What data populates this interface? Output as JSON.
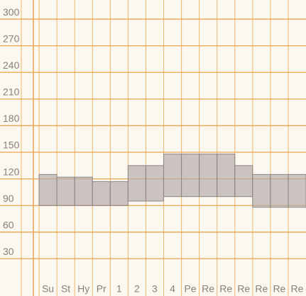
{
  "chart_data": {
    "type": "range-bar",
    "categories": [
      "Su",
      "St",
      "Hy",
      "Pr",
      "1",
      "2",
      "3",
      "4",
      "Pe",
      "Re",
      "Re",
      "Re",
      "Re",
      "Re",
      "Re"
    ],
    "low": [
      90,
      90,
      90,
      90,
      90,
      95,
      95,
      100,
      100,
      100,
      100,
      100,
      88,
      88,
      88
    ],
    "high": [
      125,
      122,
      122,
      117,
      117,
      135,
      135,
      148,
      148,
      148,
      148,
      135,
      125,
      125,
      125
    ],
    "color": "#b5adab",
    "ylim": [
      0,
      320
    ],
    "yticks": [
      30,
      60,
      90,
      120,
      150,
      180,
      210,
      240,
      270,
      300
    ],
    "grid": true
  }
}
